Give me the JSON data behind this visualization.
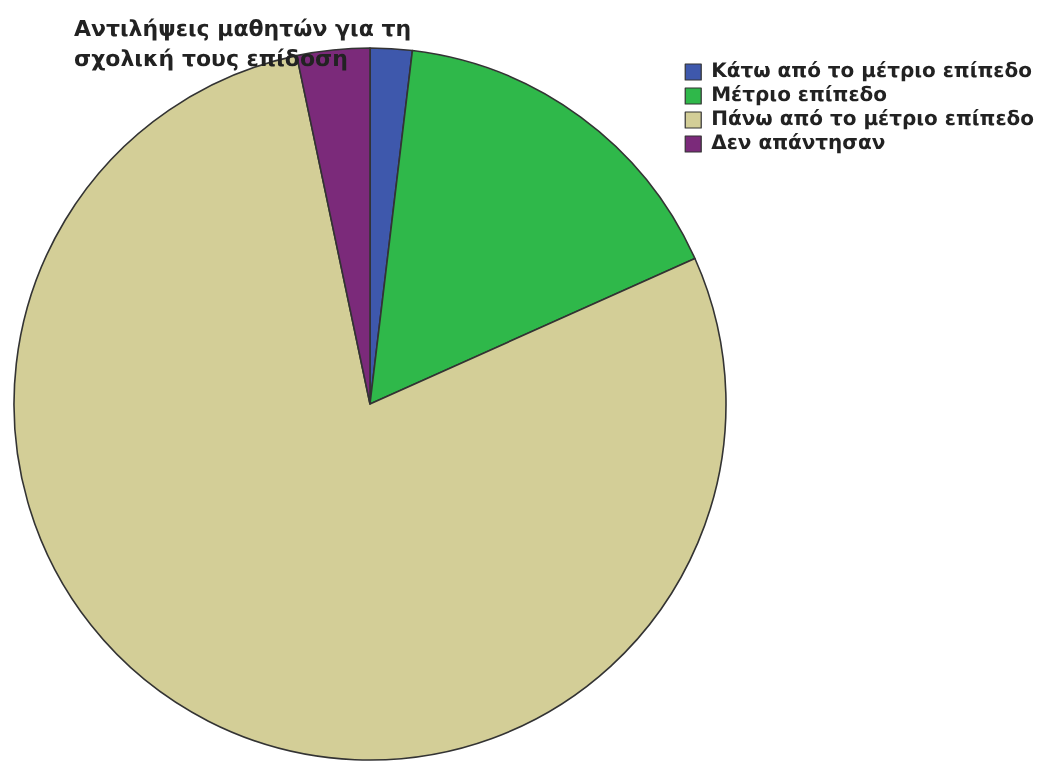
{
  "chart_data": {
    "type": "pie",
    "title": "Αντιλήψεις μαθητών για τη σχολική τους επίδοση",
    "categories": [
      "Κάτω από το μέτριο επίπεδο",
      "Μέτριο επίπεδο",
      "Πάνω από το μέτριο επίπεδο",
      "Δεν απάντησαν"
    ],
    "values": [
      1.9,
      16.4,
      78.4,
      3.3
    ],
    "colors": [
      "#3e58ac",
      "#2fb84a",
      "#d3ce97",
      "#7b2a7a"
    ],
    "legend": "top right"
  }
}
